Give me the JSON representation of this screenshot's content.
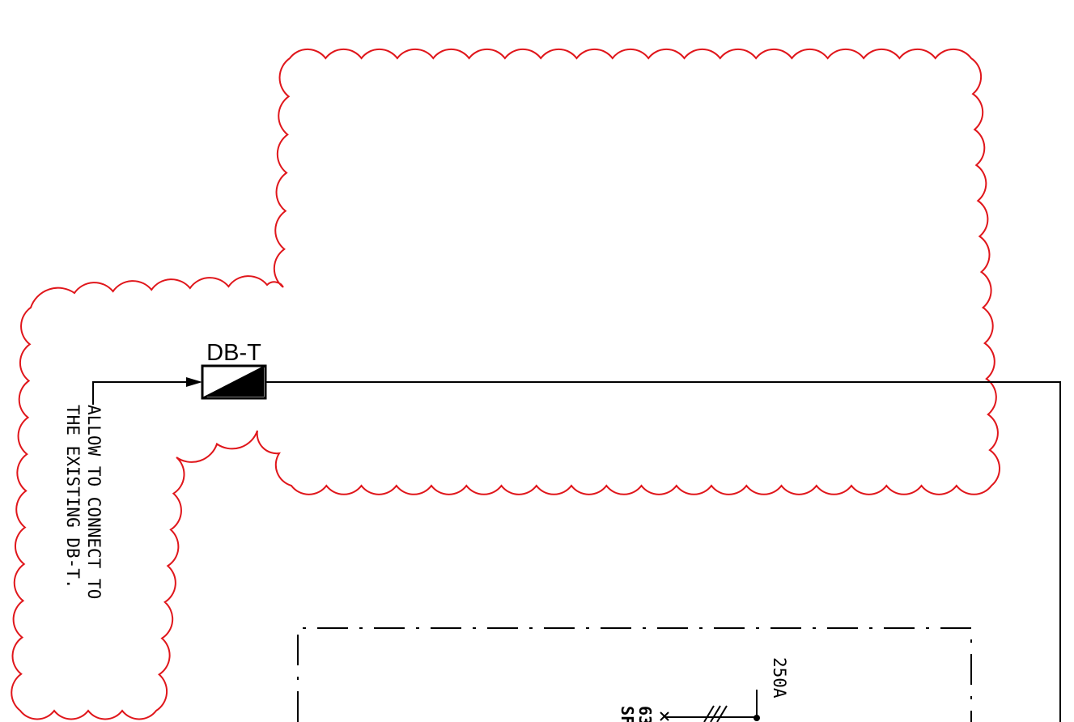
{
  "drawing": {
    "panel_tag": "DB-T",
    "note_line_1": "ALLOW TO CONNECT TO",
    "note_line_2": "THE EXISTING DB-T.",
    "breaker_rating": "250A",
    "partial_label_1": "63",
    "partial_label_2": "SF"
  },
  "colors": {
    "revision_cloud": "#e0161b",
    "linework": "#000000",
    "background": "#ffffff"
  },
  "icons": {
    "distribution_board": "db-symbol-icon",
    "arrow": "arrow-head-icon",
    "breaker": "breaker-symbol-icon"
  }
}
